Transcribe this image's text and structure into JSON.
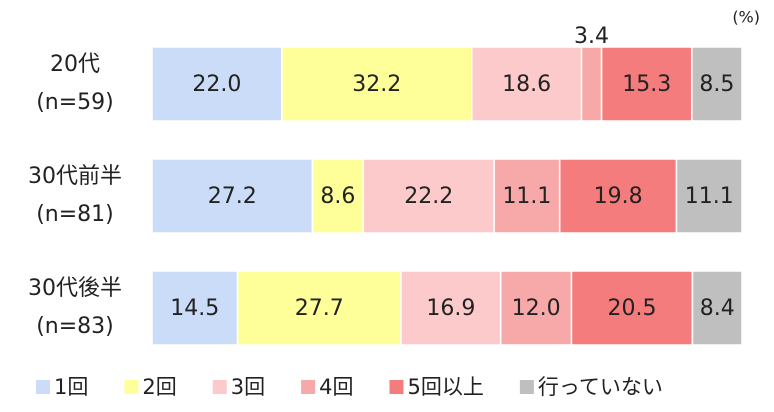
{
  "chart_data": {
    "type": "stacked-bar-horizontal",
    "unit_label": "(%)",
    "categories": [
      "20代\n(n=59)",
      "30代前半\n(n=81)",
      "30代後半\n(n=83)"
    ],
    "xlim": [
      0,
      100
    ],
    "series": [
      {
        "name": "1回",
        "color": "#cadcf7",
        "values": [
          22.0,
          27.2,
          14.5
        ],
        "value_labels": [
          "22.0",
          "27.2",
          "14.5"
        ]
      },
      {
        "name": "2回",
        "color": "#ffff99",
        "values": [
          32.2,
          8.6,
          27.7
        ],
        "value_labels": [
          "32.2",
          "8.6",
          "27.7"
        ]
      },
      {
        "name": "3回",
        "color": "#fccaca",
        "values": [
          18.6,
          22.2,
          16.9
        ],
        "value_labels": [
          "18.6",
          "22.2",
          "16.9"
        ]
      },
      {
        "name": "4回",
        "color": "#f7a9a9",
        "values": [
          3.4,
          11.1,
          12.0
        ],
        "value_labels": [
          "3.4",
          "11.1",
          "12.0"
        ]
      },
      {
        "name": "5回以上",
        "color": "#f47c7c",
        "values": [
          15.3,
          19.8,
          20.5
        ],
        "value_labels": [
          "15.3",
          "19.8",
          "20.5"
        ]
      },
      {
        "name": "行っていない",
        "color": "#bfbfbf",
        "values": [
          8.5,
          11.1,
          8.4
        ],
        "value_labels": [
          "8.5",
          "11.1",
          "8.4"
        ]
      }
    ]
  }
}
